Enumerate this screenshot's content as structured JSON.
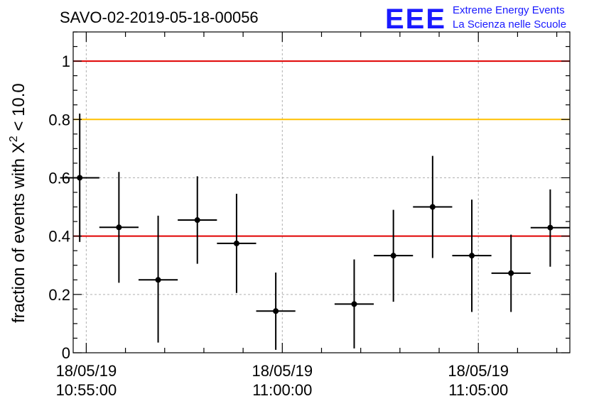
{
  "title": "SAVO-02-2019-05-18-00056",
  "logo": {
    "mark": "EEE",
    "line1": "Extreme Energy Events",
    "line2": "La Scienza nelle Scuole"
  },
  "colors": {
    "threshold_red": "#e00000",
    "threshold_orange": "#ffc000",
    "grid": "#b0b0b0",
    "points": "#000000",
    "logo_blue": "#1a1aff"
  },
  "chart_data": {
    "type": "scatter",
    "title": "SAVO-02-2019-05-18-00056",
    "ylabel": "fraction of events with X² < 10.0",
    "xlabel": "",
    "xlim": [
      "2019-05-18 10:54:40",
      "2019-05-18 11:07:20"
    ],
    "ylim": [
      0,
      1.1
    ],
    "grid": true,
    "x_tick_labels": [
      {
        "date": "18/05/19",
        "time": "10:55:00",
        "at": "2019-05-18 10:55:00"
      },
      {
        "date": "18/05/19",
        "time": "11:00:00",
        "at": "2019-05-18 11:00:00"
      },
      {
        "date": "18/05/19",
        "time": "11:05:00",
        "at": "2019-05-18 11:05:00"
      }
    ],
    "y_tick_labels": [
      "0",
      "0.2",
      "0.4",
      "0.6",
      "0.8",
      "1"
    ],
    "y_ticks": [
      0,
      0.2,
      0.4,
      0.6,
      0.8,
      1.0
    ],
    "reference_lines": [
      {
        "y": 1.0,
        "color": "#e00000"
      },
      {
        "y": 0.8,
        "color": "#ffc000"
      },
      {
        "y": 0.4,
        "color": "#e00000"
      }
    ],
    "points": [
      {
        "x": "2019-05-18 10:54:50",
        "y": 0.6,
        "x_err_s": 30,
        "y_low": 0.38,
        "y_high": 0.82
      },
      {
        "x": "2019-05-18 10:55:50",
        "y": 0.43,
        "x_err_s": 30,
        "y_low": 0.24,
        "y_high": 0.62
      },
      {
        "x": "2019-05-18 10:56:50",
        "y": 0.25,
        "x_err_s": 30,
        "y_low": 0.035,
        "y_high": 0.47
      },
      {
        "x": "2019-05-18 10:57:50",
        "y": 0.455,
        "x_err_s": 30,
        "y_low": 0.305,
        "y_high": 0.605
      },
      {
        "x": "2019-05-18 10:58:50",
        "y": 0.375,
        "x_err_s": 30,
        "y_low": 0.205,
        "y_high": 0.545
      },
      {
        "x": "2019-05-18 10:59:50",
        "y": 0.143,
        "x_err_s": 30,
        "y_low": 0.01,
        "y_high": 0.275
      },
      {
        "x": "2019-05-18 11:01:50",
        "y": 0.167,
        "x_err_s": 30,
        "y_low": 0.015,
        "y_high": 0.32
      },
      {
        "x": "2019-05-18 11:02:50",
        "y": 0.333,
        "x_err_s": 30,
        "y_low": 0.175,
        "y_high": 0.49
      },
      {
        "x": "2019-05-18 11:03:50",
        "y": 0.5,
        "x_err_s": 30,
        "y_low": 0.325,
        "y_high": 0.675
      },
      {
        "x": "2019-05-18 11:04:50",
        "y": 0.333,
        "x_err_s": 30,
        "y_low": 0.14,
        "y_high": 0.525
      },
      {
        "x": "2019-05-18 11:05:50",
        "y": 0.273,
        "x_err_s": 30,
        "y_low": 0.14,
        "y_high": 0.405
      },
      {
        "x": "2019-05-18 11:06:50",
        "y": 0.429,
        "x_err_s": 30,
        "y_low": 0.295,
        "y_high": 0.56
      }
    ]
  }
}
